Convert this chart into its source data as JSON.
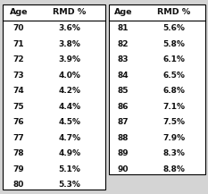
{
  "left_ages": [
    70,
    71,
    72,
    73,
    74,
    75,
    76,
    77,
    78,
    79,
    80
  ],
  "left_rmds": [
    "3.6%",
    "3.8%",
    "3.9%",
    "4.0%",
    "4.2%",
    "4.4%",
    "4.5%",
    "4.7%",
    "4.9%",
    "5.1%",
    "5.3%"
  ],
  "right_ages": [
    81,
    82,
    83,
    84,
    85,
    86,
    87,
    88,
    89,
    90
  ],
  "right_rmds": [
    "5.6%",
    "5.8%",
    "6.1%",
    "6.5%",
    "6.8%",
    "7.1%",
    "7.5%",
    "7.9%",
    "8.3%",
    "8.8%"
  ],
  "header_age": "Age",
  "header_rmd": "RMD %",
  "bg_color": "#d4d4d4",
  "table_bg": "#ffffff",
  "font_color": "#111111",
  "border_color": "#000000",
  "fig_width": 2.33,
  "fig_height": 2.17,
  "dpi": 100
}
